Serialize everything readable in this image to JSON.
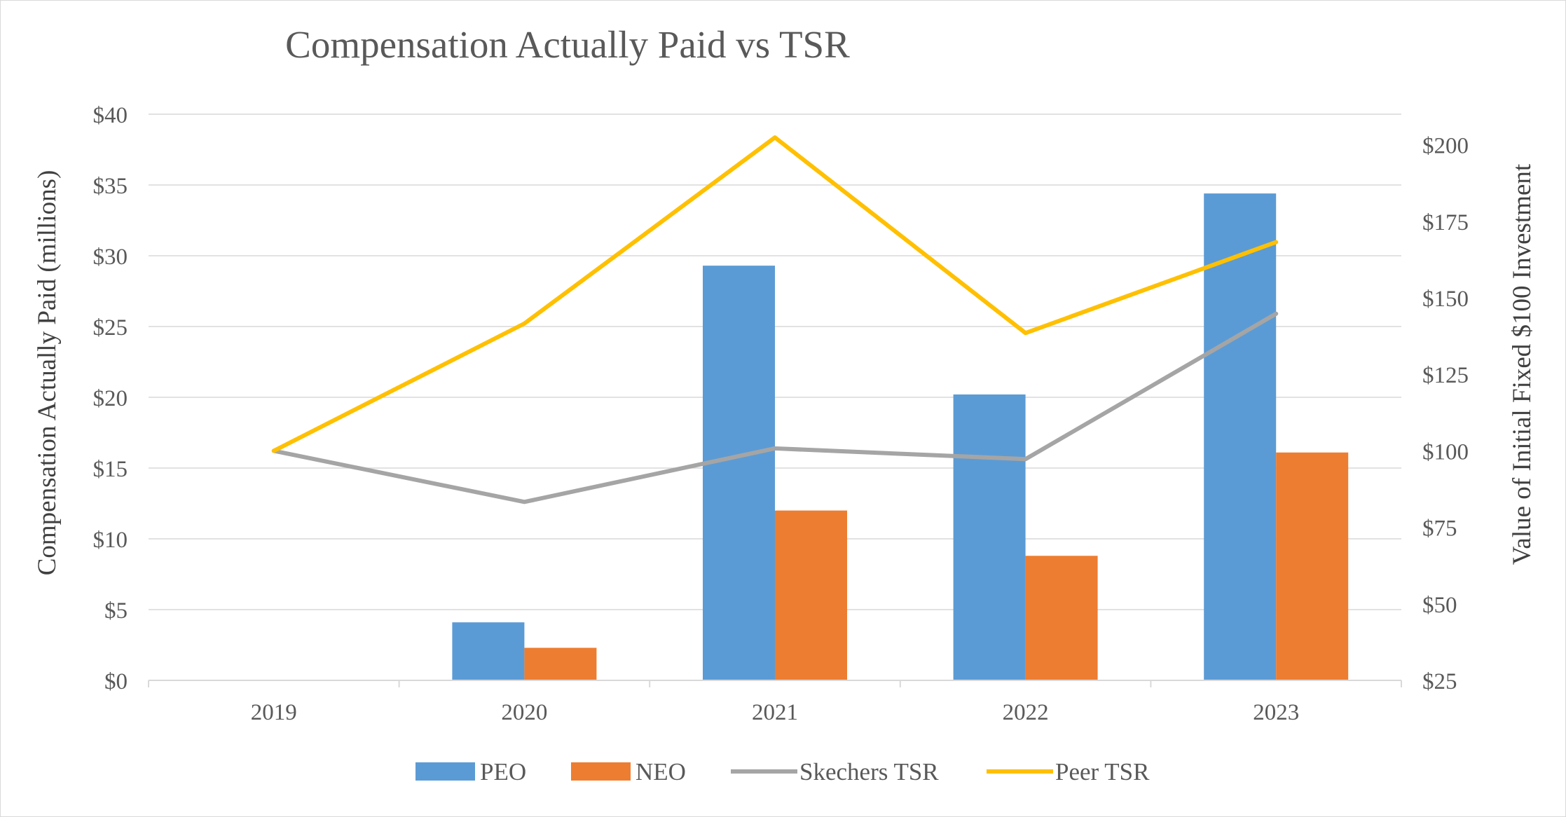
{
  "chart_data": {
    "type": "bar",
    "title": "Compensation Actually Paid vs TSR",
    "categories": [
      "2019",
      "2020",
      "2021",
      "2022",
      "2023"
    ],
    "ylabel": "Compensation Actually Paid (millions)",
    "y2label": "Value of Initial Fixed $100 Investment",
    "ylim": [
      0,
      40
    ],
    "y2lim": [
      25,
      210
    ],
    "y_ticks": [
      0,
      5,
      10,
      15,
      20,
      25,
      30,
      35,
      40
    ],
    "y_tick_labels": [
      "$0",
      "$5",
      "$10",
      "$15",
      "$20",
      "$25",
      "$30",
      "$35",
      "$40"
    ],
    "y2_ticks": [
      25,
      50,
      75,
      100,
      125,
      150,
      175,
      200
    ],
    "y2_tick_labels": [
      "$25",
      "$50",
      "$75",
      "$100",
      "$125",
      "$150",
      "$175",
      "$200"
    ],
    "grid": true,
    "legend_position": "bottom",
    "series": [
      {
        "name": "PEO",
        "type": "bar",
        "axis": "left",
        "color": "#5B9BD5",
        "values": [
          0,
          4.1,
          29.3,
          20.2,
          34.4
        ]
      },
      {
        "name": "NEO",
        "type": "bar",
        "axis": "left",
        "color": "#ED7D31",
        "values": [
          0,
          2.3,
          12.0,
          8.8,
          16.1
        ]
      },
      {
        "name": "Skechers TSR",
        "type": "line",
        "axis": "right",
        "color": "#A5A5A5",
        "values": [
          100,
          83.3,
          100.8,
          97.3,
          144.8
        ]
      },
      {
        "name": "Peer TSR",
        "type": "line",
        "axis": "right",
        "color": "#FFC000",
        "values": [
          100,
          141.6,
          202.4,
          138.5,
          168.2
        ]
      }
    ]
  }
}
